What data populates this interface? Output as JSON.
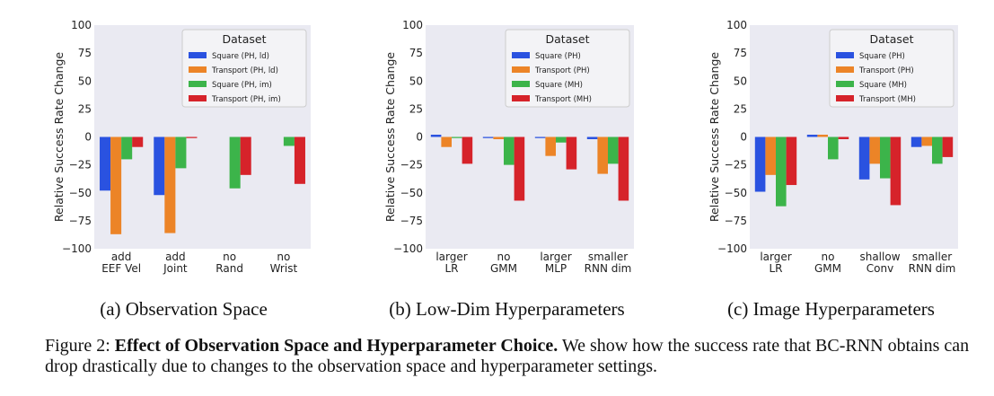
{
  "figure": {
    "label": "Figure 2:",
    "title": "Effect of Observation Space and Hyperparameter Choice.",
    "text": "We show how the success rate that BC-RNN obtains can drop drastically due to changes to the observation space and hyperparameter settings."
  },
  "colors": {
    "blue": "#2a52e0",
    "orange": "#ec8427",
    "green": "#3cb44a",
    "red": "#d6232a",
    "plot_bg": "#eaeaf2"
  },
  "chart_data": [
    {
      "type": "bar",
      "caption": "(a) Observation Space",
      "ylabel": "Relative Success Rate Change",
      "ylim": [
        -100,
        100
      ],
      "yticks": [
        100,
        75,
        50,
        25,
        0,
        -25,
        -50,
        -75,
        -100
      ],
      "grid": false,
      "legend_title": "Dataset",
      "legend_position": "top-right",
      "categories": [
        [
          "add",
          "EEF Vel"
        ],
        [
          "add",
          "Joint"
        ],
        [
          "no",
          "Rand"
        ],
        [
          "no",
          "Wrist"
        ]
      ],
      "series": [
        {
          "name": "Square (PH, ld)",
          "color": "blue",
          "values": [
            -48,
            -52,
            null,
            null
          ]
        },
        {
          "name": "Transport (PH, ld)",
          "color": "orange",
          "values": [
            -87,
            -86,
            null,
            null
          ]
        },
        {
          "name": "Square (PH, im)",
          "color": "green",
          "values": [
            -20,
            -28,
            -46,
            -8
          ]
        },
        {
          "name": "Transport (PH, im)",
          "color": "red",
          "values": [
            -9,
            -1,
            -34,
            -42
          ]
        }
      ]
    },
    {
      "type": "bar",
      "caption": "(b) Low-Dim Hyperparameters",
      "ylabel": "Relative Success Rate Change",
      "ylim": [
        -100,
        100
      ],
      "yticks": [
        100,
        75,
        50,
        25,
        0,
        -25,
        -50,
        -75,
        -100
      ],
      "grid": false,
      "legend_title": "Dataset",
      "legend_position": "top-right",
      "categories": [
        [
          "larger",
          "LR"
        ],
        [
          "no",
          "GMM"
        ],
        [
          "larger",
          "MLP"
        ],
        [
          "smaller",
          "RNN dim"
        ]
      ],
      "series": [
        {
          "name": "Square (PH)",
          "color": "blue",
          "values": [
            2,
            -1,
            -1,
            -2
          ]
        },
        {
          "name": "Transport (PH)",
          "color": "orange",
          "values": [
            -9,
            -2,
            -17,
            -33
          ]
        },
        {
          "name": "Square (MH)",
          "color": "green",
          "values": [
            -1,
            -25,
            -5,
            -24
          ]
        },
        {
          "name": "Transport (MH)",
          "color": "red",
          "values": [
            -24,
            -57,
            -29,
            -57
          ]
        }
      ]
    },
    {
      "type": "bar",
      "caption": "(c) Image Hyperparameters",
      "ylabel": "Relative Success Rate Change",
      "ylim": [
        -100,
        100
      ],
      "yticks": [
        100,
        75,
        50,
        25,
        0,
        -25,
        -50,
        -75,
        -100
      ],
      "grid": false,
      "legend_title": "Dataset",
      "legend_position": "top-right",
      "categories": [
        [
          "larger",
          "LR"
        ],
        [
          "no",
          "GMM"
        ],
        [
          "shallow",
          "Conv"
        ],
        [
          "smaller",
          "RNN dim"
        ]
      ],
      "series": [
        {
          "name": "Square (PH)",
          "color": "blue",
          "values": [
            -49,
            2,
            -38,
            -9
          ]
        },
        {
          "name": "Transport (PH)",
          "color": "orange",
          "values": [
            -34,
            2,
            -24,
            -8
          ]
        },
        {
          "name": "Square (MH)",
          "color": "green",
          "values": [
            -62,
            -20,
            -37,
            -24
          ]
        },
        {
          "name": "Transport (MH)",
          "color": "red",
          "values": [
            -43,
            -2,
            -61,
            -18
          ]
        }
      ]
    }
  ]
}
